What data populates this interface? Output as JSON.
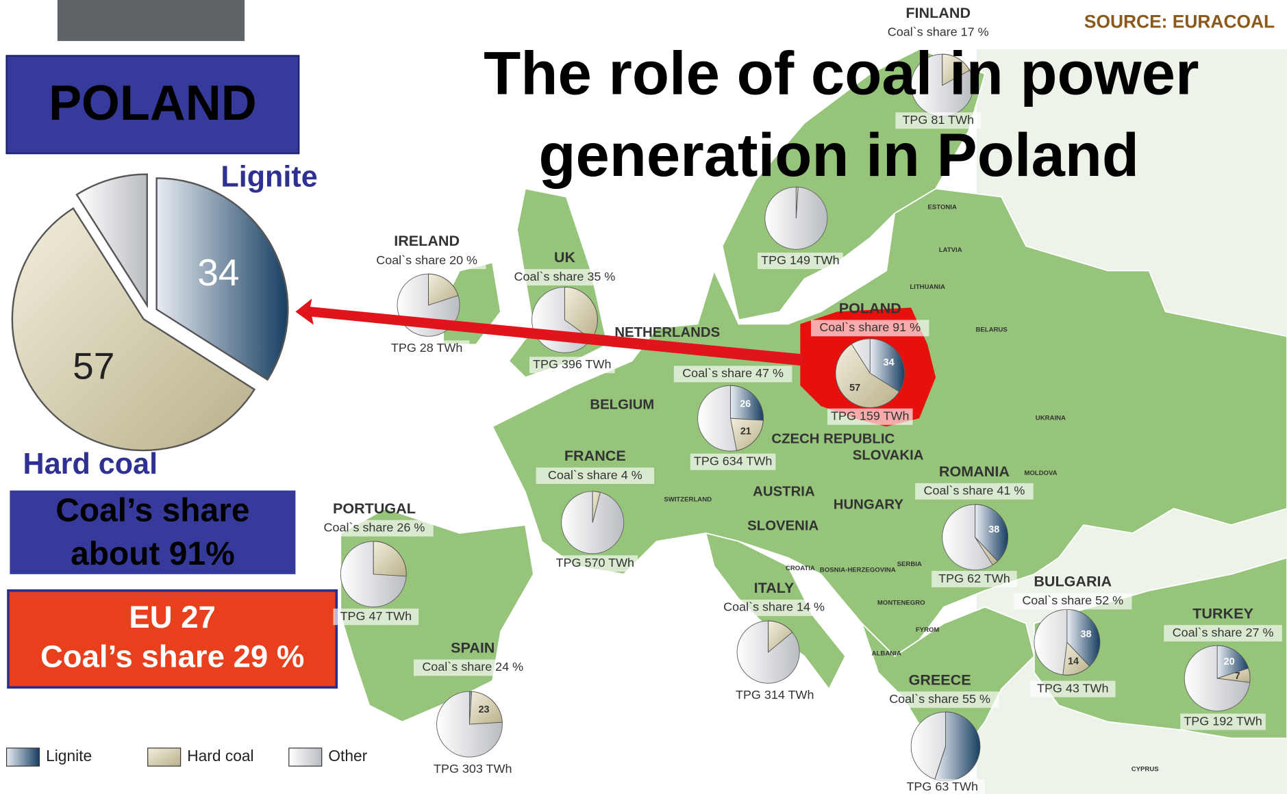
{
  "title_lines": [
    "The role of coal in power",
    "generation in Poland"
  ],
  "source": "SOURCE: EURACOAL",
  "poland_panel": {
    "heading": "POLAND",
    "pie": {
      "lignite": 34,
      "hard_coal": 57,
      "other": 9
    },
    "lignite_label": "Lignite",
    "hard_coal_label": "Hard coal",
    "share_box": [
      "Coal’s share",
      "about 91%"
    ],
    "eu_box": [
      "EU 27",
      "Coal’s share 29 %"
    ]
  },
  "legend": [
    "Lignite",
    "Hard coal",
    "Other"
  ],
  "colors": {
    "lignite": "#1d4c70",
    "hard_coal": "#d6cfa8",
    "other": "#d4d6da",
    "land": "#95c47a",
    "poland": "#e8100c",
    "arrow": "#e0141a"
  },
  "countries": [
    {
      "name": "FINLAND",
      "share": "Coal`s share 17 %",
      "tpg": "TPG 81 TWh",
      "lignite": 0,
      "hard_coal": 17,
      "printed": []
    },
    {
      "tpg": "TPG 149 TWh",
      "lignite": 0,
      "hard_coal": 1,
      "printed": []
    },
    {
      "name": "IRELAND",
      "share": "Coal`s share 20 %",
      "tpg": "TPG 28 TWh",
      "lignite": 0,
      "hard_coal": 20,
      "printed": []
    },
    {
      "name": "UK",
      "share": "Coal`s share 35 %",
      "tpg": "TPG 396 TWh",
      "lignite": 0,
      "hard_coal": 35,
      "printed": []
    },
    {
      "share": "Coal`s share 47 %",
      "tpg": "TPG 634 TWh",
      "lignite": 26,
      "hard_coal": 21,
      "printed": [
        "lignite",
        "hard_coal"
      ]
    },
    {
      "name": "FRANCE",
      "share": "Coal`s share 4 %",
      "tpg": "TPG 570 TWh",
      "lignite": 0,
      "hard_coal": 4,
      "printed": []
    },
    {
      "name": "PORTUGAL",
      "share": "Coal`s share 26 %",
      "tpg": "TPG 47 TWh",
      "lignite": 0,
      "hard_coal": 26,
      "printed": []
    },
    {
      "name": "SPAIN",
      "share": "Coal`s share 24 %",
      "tpg": "TPG 303 TWh",
      "lignite": 1,
      "hard_coal": 23,
      "printed": [
        "hard_coal"
      ]
    },
    {
      "name": "ITALY",
      "share": "Coal`s share 14 %",
      "tpg": "TPG 314 TWh",
      "lignite": 0,
      "hard_coal": 14,
      "printed": []
    },
    {
      "name": "POLAND",
      "share": "Coal`s share 91 %",
      "tpg": "TPG 159 TWh",
      "lignite": 34,
      "hard_coal": 57,
      "printed": [
        "lignite",
        "hard_coal"
      ]
    },
    {
      "name": "ROMANIA",
      "share": "Coal`s share 41 %",
      "tpg": "TPG 62 TWh",
      "lignite": 38,
      "hard_coal": 3,
      "printed": [
        "lignite"
      ]
    },
    {
      "name": "BULGARIA",
      "share": "Coal`s share 52 %",
      "tpg": "TPG 43 TWh",
      "lignite": 38,
      "hard_coal": 14,
      "printed": [
        "lignite",
        "hard_coal"
      ]
    },
    {
      "name": "GREECE",
      "share": "Coal`s share 55 %",
      "tpg": "TPG 63 TWh",
      "lignite": 55,
      "hard_coal": 0,
      "printed": []
    },
    {
      "name": "TURKEY",
      "share": "Coal`s share 27 %",
      "tpg": "TPG 192 TWh",
      "lignite": 20,
      "hard_coal": 7,
      "printed": [
        "lignite",
        "hard_coal"
      ]
    }
  ],
  "map_labels": [
    "NETHERLANDS",
    "BELGIUM",
    "CZECH REPUBLIC",
    "SLOVAKIA",
    "AUSTRIA",
    "HUNGARY",
    "SLOVENIA",
    "SWITZERLAND",
    "CROATIA",
    "BOSNIA-HERZEGOVINA",
    "SERBIA",
    "MONTENEGRO",
    "FYROM",
    "ALBANIA",
    "MOLDOVA",
    "UKRAINA",
    "BELARUS",
    "LITHUANIA",
    "LATVIA",
    "ESTONIA",
    "CYPRUS"
  ]
}
